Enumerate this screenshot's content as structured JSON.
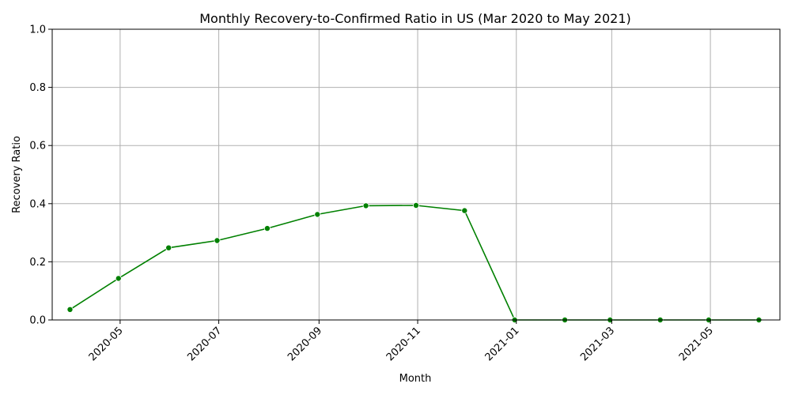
{
  "chart_data": {
    "type": "line",
    "title": "Monthly Recovery-to-Confirmed Ratio in US (Mar 2020 to May 2021)",
    "xlabel": "Month",
    "ylabel": "Recovery Ratio",
    "ylim": [
      0,
      1
    ],
    "xlim": [
      "2020-03-20",
      "2021-06-13"
    ],
    "grid": true,
    "line_color": "#008000",
    "x_ticks": [
      "2020-05",
      "2020-07",
      "2020-09",
      "2020-11",
      "2021-01",
      "2021-03",
      "2021-05"
    ],
    "y_ticks": [
      "0.0",
      "0.2",
      "0.4",
      "0.6",
      "0.8",
      "1.0"
    ],
    "series": [
      {
        "x": [
          "2020-03-31",
          "2020-04-30",
          "2020-05-31",
          "2020-06-30",
          "2020-07-31",
          "2020-08-31",
          "2020-09-30",
          "2020-10-31",
          "2020-11-30",
          "2020-12-31",
          "2021-01-31",
          "2021-02-28",
          "2021-03-31",
          "2021-04-30",
          "2021-05-31"
        ],
        "values": [
          0.036,
          0.143,
          0.248,
          0.273,
          0.315,
          0.363,
          0.393,
          0.394,
          0.376,
          0.0,
          0.0,
          0.0,
          0.0,
          0.0,
          0.0
        ]
      }
    ]
  }
}
